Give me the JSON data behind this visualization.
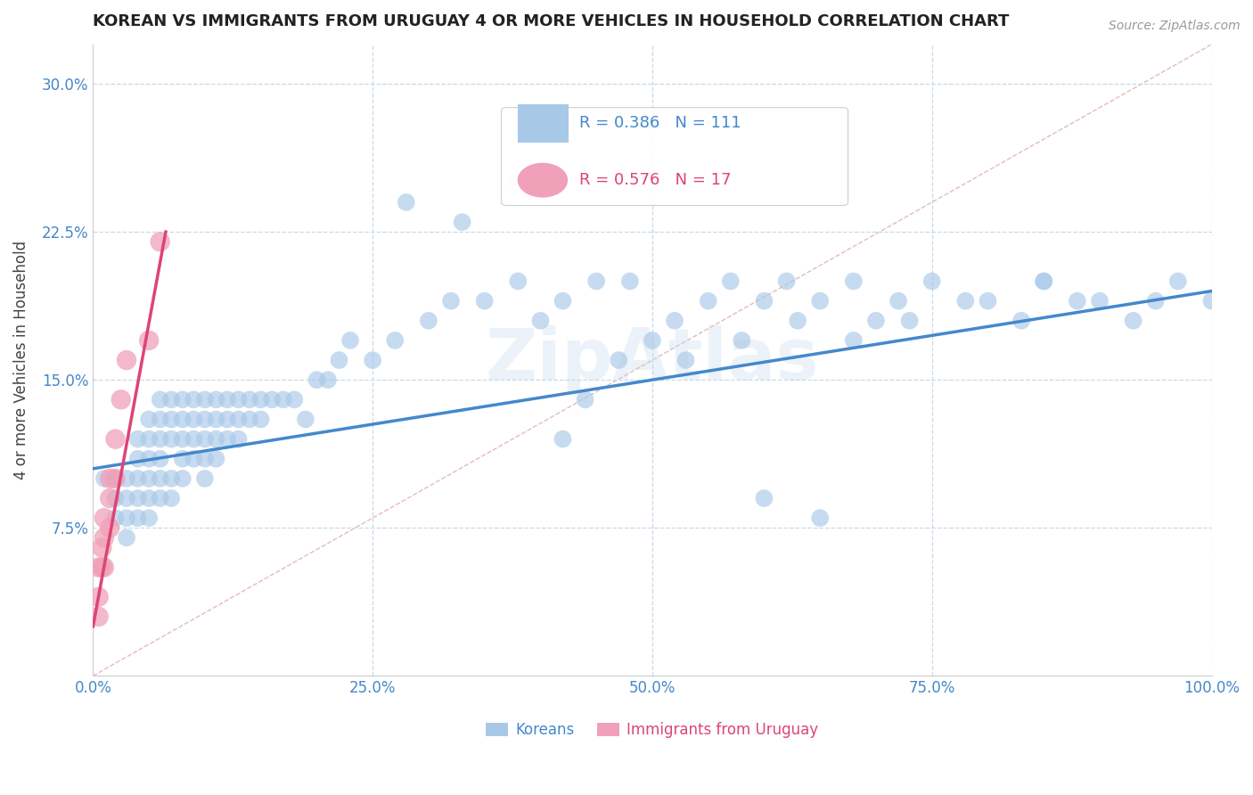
{
  "title": "KOREAN VS IMMIGRANTS FROM URUGUAY 4 OR MORE VEHICLES IN HOUSEHOLD CORRELATION CHART",
  "source_text": "Source: ZipAtlas.com",
  "ylabel": "4 or more Vehicles in Household",
  "xlim": [
    0.0,
    1.0
  ],
  "ylim": [
    0.0,
    0.32
  ],
  "xticks": [
    0.0,
    0.25,
    0.5,
    0.75,
    1.0
  ],
  "xticklabels": [
    "0.0%",
    "25.0%",
    "50.0%",
    "75.0%",
    "100.0%"
  ],
  "yticks": [
    0.075,
    0.15,
    0.225,
    0.3
  ],
  "yticklabels": [
    "7.5%",
    "15.0%",
    "22.5%",
    "30.0%"
  ],
  "korean_color": "#a8c8e8",
  "uruguay_color": "#f0a0b8",
  "korean_line_color": "#4488cc",
  "uruguay_line_color": "#dd4477",
  "ref_line_color": "#ddaaaa",
  "grid_color": "#c8d8ec",
  "background_color": "#ffffff",
  "watermark": "ZipAtlas",
  "korean_x": [
    0.01,
    0.02,
    0.02,
    0.02,
    0.03,
    0.03,
    0.03,
    0.03,
    0.04,
    0.04,
    0.04,
    0.04,
    0.04,
    0.05,
    0.05,
    0.05,
    0.05,
    0.05,
    0.05,
    0.06,
    0.06,
    0.06,
    0.06,
    0.06,
    0.06,
    0.07,
    0.07,
    0.07,
    0.07,
    0.07,
    0.08,
    0.08,
    0.08,
    0.08,
    0.08,
    0.09,
    0.09,
    0.09,
    0.09,
    0.1,
    0.1,
    0.1,
    0.1,
    0.1,
    0.11,
    0.11,
    0.11,
    0.11,
    0.12,
    0.12,
    0.12,
    0.13,
    0.13,
    0.13,
    0.14,
    0.14,
    0.15,
    0.15,
    0.16,
    0.17,
    0.18,
    0.19,
    0.2,
    0.21,
    0.22,
    0.23,
    0.25,
    0.27,
    0.3,
    0.32,
    0.35,
    0.38,
    0.4,
    0.42,
    0.45,
    0.48,
    0.5,
    0.52,
    0.55,
    0.57,
    0.6,
    0.62,
    0.65,
    0.68,
    0.7,
    0.72,
    0.75,
    0.78,
    0.8,
    0.83,
    0.85,
    0.88,
    0.9,
    0.93,
    0.95,
    0.97,
    1.0,
    0.28,
    0.33,
    0.47,
    0.53,
    0.58,
    0.63,
    0.44,
    0.38,
    0.68,
    0.73,
    0.85,
    0.6,
    0.65,
    0.42
  ],
  "korean_y": [
    0.1,
    0.1,
    0.09,
    0.08,
    0.1,
    0.09,
    0.08,
    0.07,
    0.12,
    0.11,
    0.1,
    0.09,
    0.08,
    0.13,
    0.12,
    0.11,
    0.1,
    0.09,
    0.08,
    0.14,
    0.13,
    0.12,
    0.11,
    0.1,
    0.09,
    0.14,
    0.13,
    0.12,
    0.1,
    0.09,
    0.14,
    0.13,
    0.12,
    0.11,
    0.1,
    0.14,
    0.13,
    0.12,
    0.11,
    0.14,
    0.13,
    0.12,
    0.11,
    0.1,
    0.14,
    0.13,
    0.12,
    0.11,
    0.14,
    0.13,
    0.12,
    0.14,
    0.13,
    0.12,
    0.14,
    0.13,
    0.14,
    0.13,
    0.14,
    0.14,
    0.14,
    0.13,
    0.15,
    0.15,
    0.16,
    0.17,
    0.16,
    0.17,
    0.18,
    0.19,
    0.19,
    0.2,
    0.18,
    0.19,
    0.2,
    0.2,
    0.17,
    0.18,
    0.19,
    0.2,
    0.19,
    0.2,
    0.19,
    0.2,
    0.18,
    0.19,
    0.2,
    0.19,
    0.19,
    0.18,
    0.2,
    0.19,
    0.19,
    0.18,
    0.19,
    0.2,
    0.19,
    0.24,
    0.23,
    0.16,
    0.16,
    0.17,
    0.18,
    0.14,
    0.25,
    0.17,
    0.18,
    0.2,
    0.09,
    0.08,
    0.12
  ],
  "uruguay_x": [
    0.005,
    0.005,
    0.005,
    0.008,
    0.008,
    0.01,
    0.01,
    0.01,
    0.015,
    0.015,
    0.015,
    0.02,
    0.02,
    0.025,
    0.03,
    0.05,
    0.06
  ],
  "uruguay_y": [
    0.055,
    0.04,
    0.03,
    0.065,
    0.055,
    0.08,
    0.07,
    0.055,
    0.1,
    0.09,
    0.075,
    0.12,
    0.1,
    0.14,
    0.16,
    0.17,
    0.22
  ],
  "korean_trend_x": [
    0.0,
    1.0
  ],
  "korean_trend_y": [
    0.105,
    0.195
  ],
  "uruguay_trend_x": [
    0.0,
    0.065
  ],
  "uruguay_trend_y": [
    0.025,
    0.225
  ]
}
